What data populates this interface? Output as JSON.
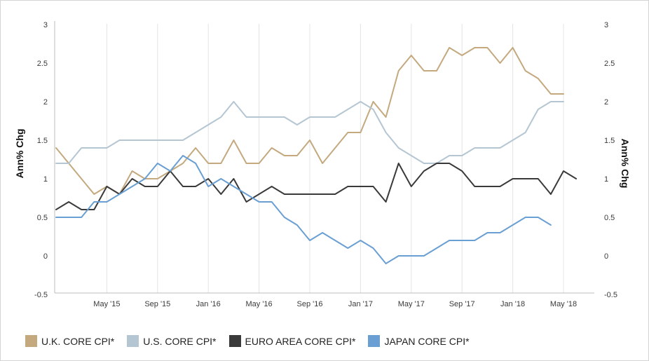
{
  "chart_data": {
    "type": "line",
    "ylabel_left": "Ann% Chg",
    "ylabel_right": "Ann% Chg",
    "ylim": [
      -0.5,
      3
    ],
    "yticks": [
      "-0.5",
      "0",
      "0.5",
      "1",
      "1.5",
      "2",
      "2.5",
      "3"
    ],
    "yticks_right": [
      "-0.5",
      "0",
      "0.5",
      "1",
      "1.5",
      "2",
      "2.5",
      "3"
    ],
    "xticks": [
      "May '15",
      "Sep '15",
      "Jan '16",
      "May '16",
      "Sep '16",
      "Jan '17",
      "May '17",
      "Sep '17",
      "Jan '18",
      "May '18"
    ],
    "x": [
      "2015-01",
      "2015-02",
      "2015-03",
      "2015-04",
      "2015-05",
      "2015-06",
      "2015-07",
      "2015-08",
      "2015-09",
      "2015-10",
      "2015-11",
      "2015-12",
      "2016-01",
      "2016-02",
      "2016-03",
      "2016-04",
      "2016-05",
      "2016-06",
      "2016-07",
      "2016-08",
      "2016-09",
      "2016-10",
      "2016-11",
      "2016-12",
      "2017-01",
      "2017-02",
      "2017-03",
      "2017-04",
      "2017-05",
      "2017-06",
      "2017-07",
      "2017-08",
      "2017-09",
      "2017-10",
      "2017-11",
      "2017-12",
      "2018-01",
      "2018-02",
      "2018-03",
      "2018-04",
      "2018-05",
      "2018-06",
      "2018-07"
    ],
    "legend_position": "bottom",
    "grid": "vertical",
    "series": [
      {
        "name": "U.K. CORE CPI*",
        "color": "#c4a97f",
        "values": [
          1.4,
          1.2,
          1.0,
          0.8,
          0.9,
          0.8,
          1.1,
          1.0,
          1.0,
          1.1,
          1.2,
          1.4,
          1.2,
          1.2,
          1.5,
          1.2,
          1.2,
          1.4,
          1.3,
          1.3,
          1.5,
          1.2,
          1.4,
          1.6,
          1.6,
          2.0,
          1.8,
          2.4,
          2.6,
          2.4,
          2.4,
          2.7,
          2.6,
          2.7,
          2.7,
          2.5,
          2.7,
          2.4,
          2.3,
          2.1,
          2.1,
          null,
          null
        ]
      },
      {
        "name": "U.S. CORE CPI*",
        "color": "#b5c6d3",
        "values": [
          1.2,
          1.2,
          1.4,
          1.4,
          1.4,
          1.5,
          1.5,
          1.5,
          1.5,
          1.5,
          1.5,
          1.6,
          1.7,
          1.8,
          2.0,
          1.8,
          1.8,
          1.8,
          1.8,
          1.7,
          1.8,
          1.8,
          1.8,
          1.9,
          2.0,
          1.9,
          1.6,
          1.4,
          1.3,
          1.2,
          1.2,
          1.3,
          1.3,
          1.4,
          1.4,
          1.4,
          1.5,
          1.6,
          1.9,
          2.0,
          2.0,
          null,
          null
        ]
      },
      {
        "name": "EURO AREA CORE CPI*",
        "color": "#3a3a3a",
        "values": [
          0.6,
          0.7,
          0.6,
          0.6,
          0.9,
          0.8,
          1.0,
          0.9,
          0.9,
          1.1,
          0.9,
          0.9,
          1.0,
          0.8,
          1.0,
          0.7,
          0.8,
          0.9,
          0.8,
          0.8,
          0.8,
          0.8,
          0.8,
          0.9,
          0.9,
          0.9,
          0.7,
          1.2,
          0.9,
          1.1,
          1.2,
          1.2,
          1.1,
          0.9,
          0.9,
          0.9,
          1.0,
          1.0,
          1.0,
          0.8,
          1.1,
          1.0,
          null
        ]
      },
      {
        "name": "JAPAN CORE CPI*",
        "color": "#6a9fd3",
        "values": [
          0.5,
          0.5,
          0.5,
          0.7,
          0.7,
          0.8,
          0.9,
          1.0,
          1.2,
          1.1,
          1.3,
          1.2,
          0.9,
          1.0,
          0.9,
          0.8,
          0.7,
          0.7,
          0.5,
          0.4,
          0.2,
          0.3,
          0.2,
          0.1,
          0.2,
          0.1,
          -0.1,
          0.0,
          0.0,
          0.0,
          0.1,
          0.2,
          0.2,
          0.2,
          0.3,
          0.3,
          0.4,
          0.5,
          0.5,
          0.4,
          null,
          null,
          null
        ]
      }
    ]
  }
}
